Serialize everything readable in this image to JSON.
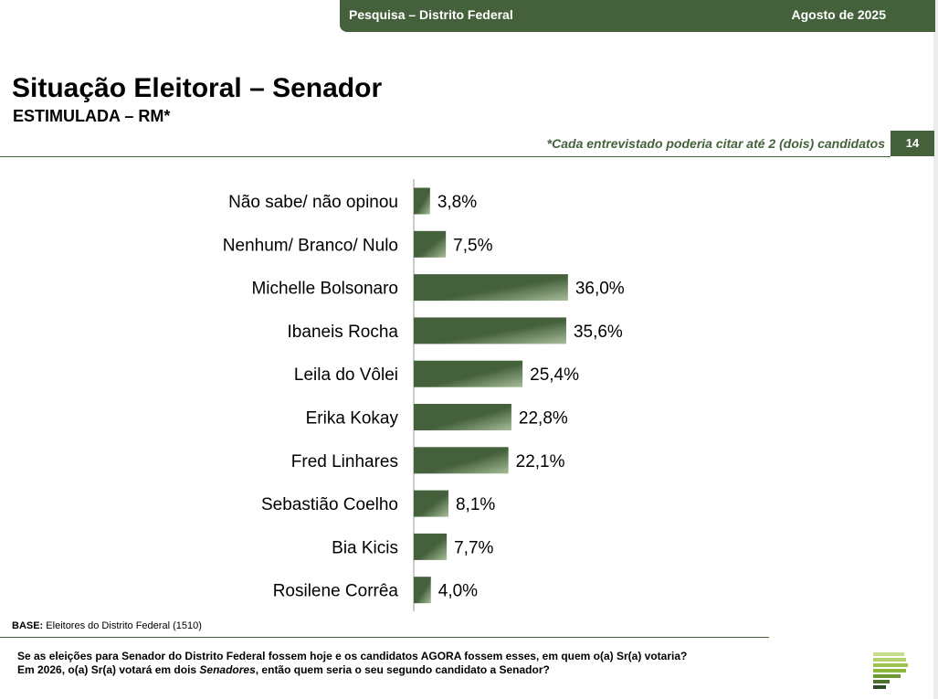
{
  "header": {
    "survey": "Pesquisa – Distrito Federal",
    "date": "Agosto de 2025"
  },
  "title": "Situação Eleitoral – Senador",
  "subtitle": "ESTIMULADA – RM*",
  "note": "*Cada entrevistado poderia citar até 2 (dois) candidatos",
  "page_number": "14",
  "footer": {
    "base_label": "BASE:",
    "base_text": " Eleitores do Distrito Federal (1510)",
    "question_line1": "Se as eleições para Senador do Distrito Federal fossem hoje e os candidatos AGORA fossem esses, em quem o(a) Sr(a) votaria?",
    "question_line2_before": "Em 2026, o(a) Sr(a) votará em dois ",
    "question_line2_italic": "Senadores",
    "question_line2_after": ", então quem seria o seu segundo candidato a Senador?"
  },
  "colors": {
    "brand_green": "#44613c",
    "bar_light": "#a7bd98",
    "logo_green": "#8db63a"
  },
  "chart_data": {
    "type": "bar",
    "orientation": "horizontal",
    "categories": [
      "Não sabe/ não opinou",
      "Nenhum/ Branco/ Nulo",
      "Michelle Bolsonaro",
      "Ibaneis Rocha",
      "Leila do Vôlei",
      "Erika Kokay",
      "Fred Linhares",
      "Sebastião Coelho",
      "Bia Kicis",
      "Rosilene Corrêa"
    ],
    "values": [
      3.8,
      7.5,
      36.0,
      35.6,
      25.4,
      22.8,
      22.1,
      8.1,
      7.7,
      4.0
    ],
    "value_labels": [
      "3,8%",
      "7,5%",
      "36,0%",
      "35,6%",
      "25,4%",
      "22,8%",
      "22,1%",
      "8,1%",
      "7,7%",
      "4,0%"
    ],
    "xlim": [
      0,
      40
    ],
    "grid": false,
    "legend": "none"
  }
}
